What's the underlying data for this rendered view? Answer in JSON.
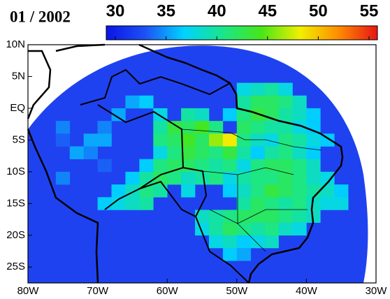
{
  "chart_data": {
    "type": "gridmap",
    "title": "01 / 2002",
    "xlim": [
      -80,
      -30
    ],
    "ylim": [
      -27.5,
      10
    ],
    "xticks": [
      {
        "value": -80,
        "label": "80W"
      },
      {
        "value": -70,
        "label": "70W"
      },
      {
        "value": -60,
        "label": "60W"
      },
      {
        "value": -50,
        "label": "50W"
      },
      {
        "value": -40,
        "label": "40W"
      },
      {
        "value": -30,
        "label": "30W"
      }
    ],
    "yticks": [
      {
        "value": 10,
        "label": "10N"
      },
      {
        "value": 5,
        "label": "5N"
      },
      {
        "value": 0,
        "label": "EQ"
      },
      {
        "value": -5,
        "label": "5S"
      },
      {
        "value": -10,
        "label": "10S"
      },
      {
        "value": -15,
        "label": "15S"
      },
      {
        "value": -20,
        "label": "20S"
      },
      {
        "value": -25,
        "label": "25S"
      }
    ],
    "colorbar": {
      "lim": [
        30,
        55
      ],
      "ticks": [
        30,
        35,
        40,
        45,
        50,
        55
      ],
      "colors": [
        "#0a14e6",
        "#1e50f5",
        "#00d2ff",
        "#19e68c",
        "#46e619",
        "#f0f000",
        "#ff8c00",
        "#e61414"
      ]
    },
    "cells": [
      {
        "lon": -50,
        "lat": 2,
        "value": 38
      },
      {
        "lon": -48,
        "lat": 2,
        "value": 39
      },
      {
        "lon": -46,
        "lat": 2,
        "value": 40
      },
      {
        "lon": -44,
        "lat": 2,
        "value": 38
      },
      {
        "lon": -66,
        "lat": 0,
        "value": 36
      },
      {
        "lon": -64,
        "lat": 0,
        "value": 37
      },
      {
        "lon": -50,
        "lat": 0,
        "value": 40
      },
      {
        "lon": -48,
        "lat": 0,
        "value": 42
      },
      {
        "lon": -46,
        "lat": 0,
        "value": 42
      },
      {
        "lon": -44,
        "lat": 0,
        "value": 41
      },
      {
        "lon": -42,
        "lat": 0,
        "value": 39
      },
      {
        "lon": -68,
        "lat": -2,
        "value": 36
      },
      {
        "lon": -62,
        "lat": -2,
        "value": 38
      },
      {
        "lon": -58,
        "lat": -2,
        "value": 40
      },
      {
        "lon": -56,
        "lat": -2,
        "value": 39
      },
      {
        "lon": -52,
        "lat": -2,
        "value": 37
      },
      {
        "lon": -50,
        "lat": -2,
        "value": 41
      },
      {
        "lon": -48,
        "lat": -2,
        "value": 43
      },
      {
        "lon": -46,
        "lat": -2,
        "value": 42
      },
      {
        "lon": -44,
        "lat": -2,
        "value": 40
      },
      {
        "lon": -42,
        "lat": -2,
        "value": 39
      },
      {
        "lon": -40,
        "lat": -2,
        "value": 37
      },
      {
        "lon": -76,
        "lat": -4,
        "value": 35
      },
      {
        "lon": -70,
        "lat": -4,
        "value": 35
      },
      {
        "lon": -62,
        "lat": -4,
        "value": 40
      },
      {
        "lon": -60,
        "lat": -4,
        "value": 43
      },
      {
        "lon": -58,
        "lat": -4,
        "value": 42
      },
      {
        "lon": -56,
        "lat": -4,
        "value": 44
      },
      {
        "lon": -54,
        "lat": -4,
        "value": 41
      },
      {
        "lon": -50,
        "lat": -4,
        "value": 42
      },
      {
        "lon": -48,
        "lat": -4,
        "value": 41
      },
      {
        "lon": -46,
        "lat": -4,
        "value": 40
      },
      {
        "lon": -44,
        "lat": -4,
        "value": 40
      },
      {
        "lon": -42,
        "lat": -4,
        "value": 38
      },
      {
        "lon": -40,
        "lat": -4,
        "value": 37
      },
      {
        "lon": -76,
        "lat": -6,
        "value": 34
      },
      {
        "lon": -72,
        "lat": -6,
        "value": 36
      },
      {
        "lon": -70,
        "lat": -6,
        "value": 36
      },
      {
        "lon": -62,
        "lat": -6,
        "value": 41
      },
      {
        "lon": -60,
        "lat": -6,
        "value": 42
      },
      {
        "lon": -58,
        "lat": -6,
        "value": 44
      },
      {
        "lon": -56,
        "lat": -6,
        "value": 42
      },
      {
        "lon": -54,
        "lat": -6,
        "value": 46
      },
      {
        "lon": -52,
        "lat": -6,
        "value": 48
      },
      {
        "lon": -50,
        "lat": -6,
        "value": 41
      },
      {
        "lon": -48,
        "lat": -6,
        "value": 39
      },
      {
        "lon": -46,
        "lat": -6,
        "value": 38
      },
      {
        "lon": -44,
        "lat": -6,
        "value": 41
      },
      {
        "lon": -42,
        "lat": -6,
        "value": 40
      },
      {
        "lon": -40,
        "lat": -6,
        "value": 38
      },
      {
        "lon": -38,
        "lat": -6,
        "value": 37
      },
      {
        "lon": -74,
        "lat": -8,
        "value": 36
      },
      {
        "lon": -72,
        "lat": -8,
        "value": 35
      },
      {
        "lon": -62,
        "lat": -8,
        "value": 38
      },
      {
        "lon": -60,
        "lat": -8,
        "value": 41
      },
      {
        "lon": -58,
        "lat": -8,
        "value": 43
      },
      {
        "lon": -56,
        "lat": -8,
        "value": 42
      },
      {
        "lon": -54,
        "lat": -8,
        "value": 41
      },
      {
        "lon": -52,
        "lat": -8,
        "value": 43
      },
      {
        "lon": -50,
        "lat": -8,
        "value": 40
      },
      {
        "lon": -48,
        "lat": -8,
        "value": 37
      },
      {
        "lon": -46,
        "lat": -8,
        "value": 40
      },
      {
        "lon": -44,
        "lat": -8,
        "value": 41
      },
      {
        "lon": -42,
        "lat": -8,
        "value": 39
      },
      {
        "lon": -40,
        "lat": -8,
        "value": 37
      },
      {
        "lon": -70,
        "lat": -10,
        "value": 34
      },
      {
        "lon": -64,
        "lat": -10,
        "value": 37
      },
      {
        "lon": -62,
        "lat": -10,
        "value": 41
      },
      {
        "lon": -60,
        "lat": -10,
        "value": 42
      },
      {
        "lon": -58,
        "lat": -10,
        "value": 42
      },
      {
        "lon": -56,
        "lat": -10,
        "value": 41
      },
      {
        "lon": -54,
        "lat": -10,
        "value": 40
      },
      {
        "lon": -52,
        "lat": -10,
        "value": 41
      },
      {
        "lon": -50,
        "lat": -10,
        "value": 38
      },
      {
        "lon": -48,
        "lat": -10,
        "value": 41
      },
      {
        "lon": -46,
        "lat": -10,
        "value": 42
      },
      {
        "lon": -44,
        "lat": -10,
        "value": 42
      },
      {
        "lon": -42,
        "lat": -10,
        "value": 41
      },
      {
        "lon": -40,
        "lat": -10,
        "value": 39
      },
      {
        "lon": -76,
        "lat": -12,
        "value": 35
      },
      {
        "lon": -66,
        "lat": -12,
        "value": 37
      },
      {
        "lon": -64,
        "lat": -12,
        "value": 40
      },
      {
        "lon": -62,
        "lat": -12,
        "value": 42
      },
      {
        "lon": -60,
        "lat": -12,
        "value": 41
      },
      {
        "lon": -58,
        "lat": -12,
        "value": 39
      },
      {
        "lon": -56,
        "lat": -12,
        "value": 40
      },
      {
        "lon": -54,
        "lat": -12,
        "value": 41
      },
      {
        "lon": -52,
        "lat": -12,
        "value": 38
      },
      {
        "lon": -50,
        "lat": -12,
        "value": 40
      },
      {
        "lon": -48,
        "lat": -12,
        "value": 41
      },
      {
        "lon": -46,
        "lat": -12,
        "value": 41
      },
      {
        "lon": -44,
        "lat": -12,
        "value": 42
      },
      {
        "lon": -42,
        "lat": -12,
        "value": 41
      },
      {
        "lon": -40,
        "lat": -12,
        "value": 39
      },
      {
        "lon": -38,
        "lat": -12,
        "value": 38
      },
      {
        "lon": -68,
        "lat": -14,
        "value": 37
      },
      {
        "lon": -66,
        "lat": -14,
        "value": 39
      },
      {
        "lon": -64,
        "lat": -14,
        "value": 41
      },
      {
        "lon": -62,
        "lat": -14,
        "value": 40
      },
      {
        "lon": -58,
        "lat": -14,
        "value": 38
      },
      {
        "lon": -52,
        "lat": -14,
        "value": 37
      },
      {
        "lon": -50,
        "lat": -14,
        "value": 39
      },
      {
        "lon": -48,
        "lat": -14,
        "value": 41
      },
      {
        "lon": -46,
        "lat": -14,
        "value": 43
      },
      {
        "lon": -44,
        "lat": -14,
        "value": 42
      },
      {
        "lon": -42,
        "lat": -14,
        "value": 41
      },
      {
        "lon": -40,
        "lat": -14,
        "value": 40
      },
      {
        "lon": -38,
        "lat": -14,
        "value": 39
      },
      {
        "lon": -36,
        "lat": -14,
        "value": 37
      },
      {
        "lon": -70,
        "lat": -16,
        "value": 37
      },
      {
        "lon": -68,
        "lat": -16,
        "value": 38
      },
      {
        "lon": -66,
        "lat": -16,
        "value": 39
      },
      {
        "lon": -64,
        "lat": -16,
        "value": 40
      },
      {
        "lon": -50,
        "lat": -16,
        "value": 40
      },
      {
        "lon": -48,
        "lat": -16,
        "value": 42
      },
      {
        "lon": -46,
        "lat": -16,
        "value": 41
      },
      {
        "lon": -44,
        "lat": -16,
        "value": 40
      },
      {
        "lon": -42,
        "lat": -16,
        "value": 41
      },
      {
        "lon": -40,
        "lat": -16,
        "value": 39
      },
      {
        "lon": -38,
        "lat": -16,
        "value": 38
      },
      {
        "lon": -36,
        "lat": -16,
        "value": 38
      },
      {
        "lon": -56,
        "lat": -18,
        "value": 39
      },
      {
        "lon": -54,
        "lat": -18,
        "value": 40
      },
      {
        "lon": -52,
        "lat": -18,
        "value": 41
      },
      {
        "lon": -50,
        "lat": -18,
        "value": 42
      },
      {
        "lon": -48,
        "lat": -18,
        "value": 42
      },
      {
        "lon": -46,
        "lat": -18,
        "value": 42
      },
      {
        "lon": -44,
        "lat": -18,
        "value": 41
      },
      {
        "lon": -42,
        "lat": -18,
        "value": 40
      },
      {
        "lon": -40,
        "lat": -18,
        "value": 39
      },
      {
        "lon": -56,
        "lat": -20,
        "value": 38
      },
      {
        "lon": -54,
        "lat": -20,
        "value": 40
      },
      {
        "lon": -52,
        "lat": -20,
        "value": 42
      },
      {
        "lon": -50,
        "lat": -20,
        "value": 41
      },
      {
        "lon": -48,
        "lat": -20,
        "value": 40
      },
      {
        "lon": -46,
        "lat": -20,
        "value": 41
      },
      {
        "lon": -44,
        "lat": -20,
        "value": 39
      },
      {
        "lon": -42,
        "lat": -20,
        "value": 38
      },
      {
        "lon": -54,
        "lat": -22,
        "value": 38
      },
      {
        "lon": -52,
        "lat": -22,
        "value": 39
      },
      {
        "lon": -50,
        "lat": -22,
        "value": 37
      },
      {
        "lon": -48,
        "lat": -22,
        "value": 38
      },
      {
        "lon": -46,
        "lat": -22,
        "value": 39
      },
      {
        "lon": -52,
        "lat": -24,
        "value": 37
      },
      {
        "lon": -50,
        "lat": -24,
        "value": 36
      }
    ]
  }
}
